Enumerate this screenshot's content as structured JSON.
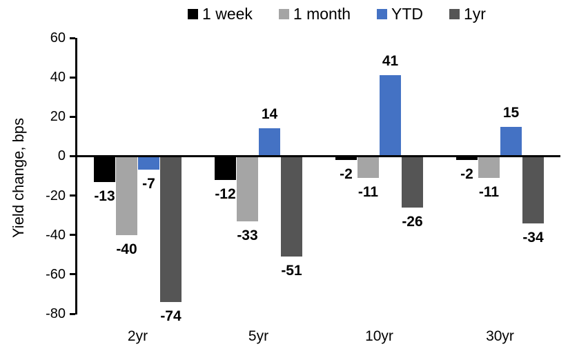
{
  "chart": {
    "y_axis_title": "Yield change, bps"
  },
  "chart_data": {
    "type": "bar",
    "title": "",
    "xlabel": "",
    "ylabel": "Yield change, bps",
    "categories": [
      "2yr",
      "5yr",
      "10yr",
      "30yr"
    ],
    "series": [
      {
        "name": "1 week",
        "color": "#000000",
        "values": [
          -13,
          -12,
          -2,
          -2
        ]
      },
      {
        "name": "1 month",
        "color": "#A5A5A5",
        "values": [
          -40,
          -33,
          -11,
          -11
        ]
      },
      {
        "name": "YTD",
        "color": "#4472C4",
        "values": [
          -7,
          14,
          41,
          15
        ]
      },
      {
        "name": "1yr",
        "color": "#555555",
        "values": [
          -74,
          -51,
          -26,
          -34
        ]
      }
    ],
    "data_labels_shown": true,
    "ylim": [
      -80,
      60
    ],
    "y_ticks": [
      60,
      40,
      20,
      0,
      -20,
      -40,
      -60,
      -80
    ],
    "grid": false,
    "legend_position": "top",
    "axis_color": "#000000"
  }
}
